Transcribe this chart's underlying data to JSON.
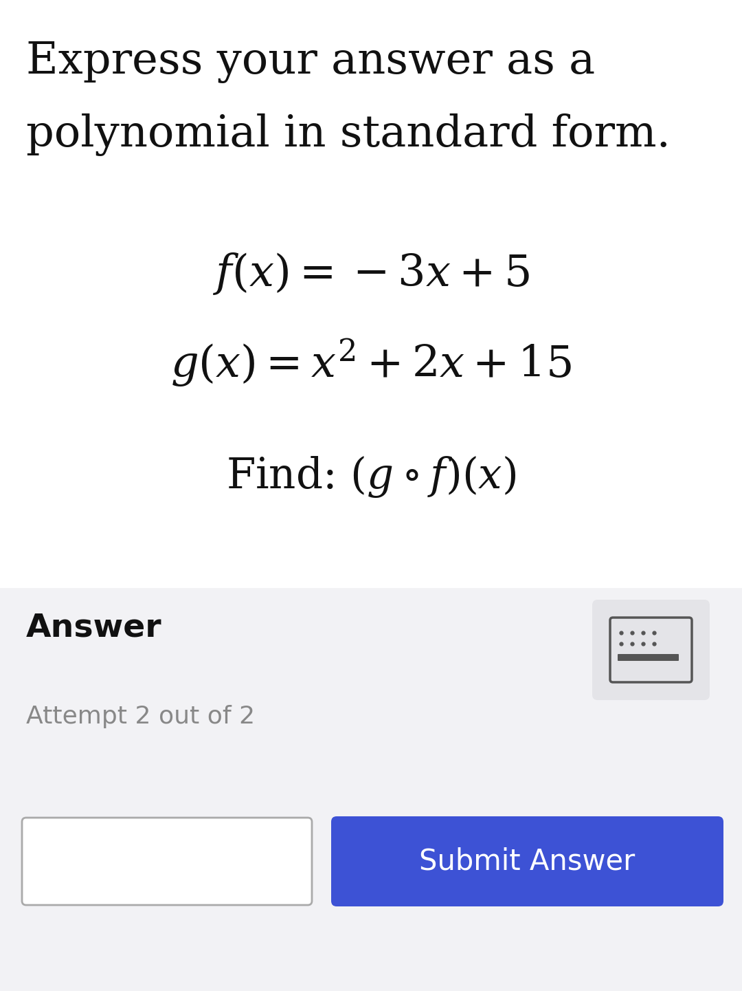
{
  "title_line1": "Express your answer as a",
  "title_line2": "polynomial in standard form.",
  "title_fontsize": 46,
  "title_color": "#111111",
  "fx_label": "$f(x) = -3x + 5$",
  "gx_label": "$g(x) = x^2 + 2x + 15$",
  "find_label": "Find: $(g \\circ f)(x)$",
  "math_fontsize": 46,
  "find_fontsize": 44,
  "answer_label": "Answer",
  "answer_fontsize": 34,
  "attempt_label": "Attempt 2 out of 2",
  "attempt_fontsize": 26,
  "submit_label": "Submit Answer",
  "submit_fontsize": 30,
  "submit_color": "#3d52d5",
  "submit_text_color": "#ffffff",
  "background_color": "#ffffff",
  "answer_section_bg": "#f2f2f5",
  "input_box_bg": "#ffffff",
  "input_box_border": "#aaaaaa",
  "keyboard_icon_bg": "#e4e4e8",
  "keyboard_icon_color": "#555555",
  "text_color": "#111111",
  "gray_text_color": "#888888",
  "fig_width": 10.8,
  "fig_height": 14.41,
  "dpi": 100
}
